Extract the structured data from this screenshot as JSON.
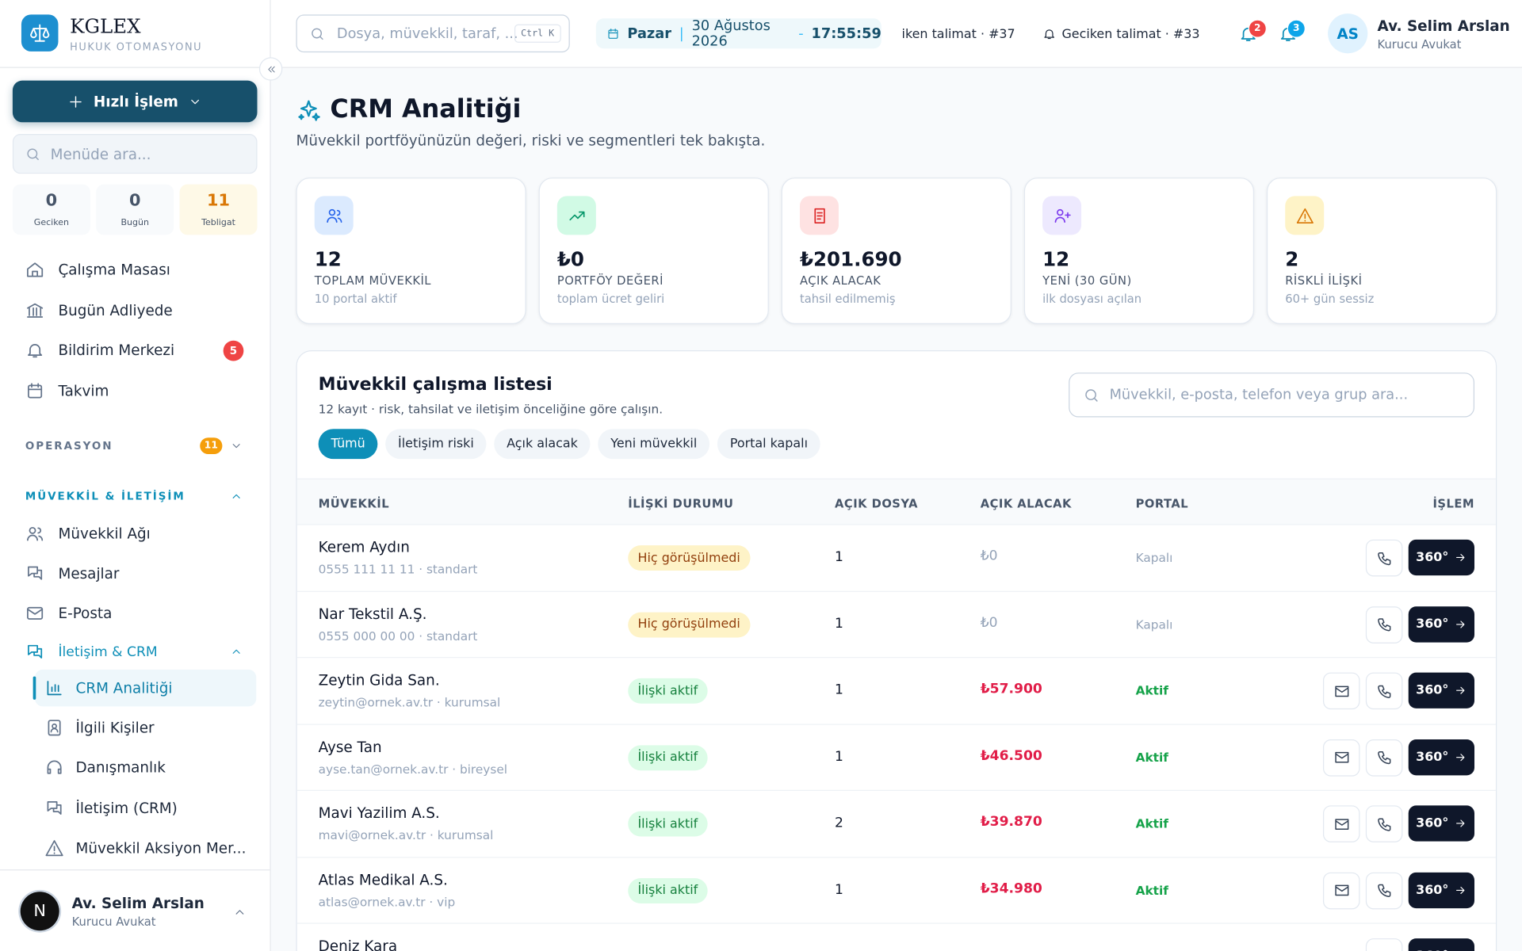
{
  "sidebar": {
    "brand": {
      "name": "KGLEX",
      "tagline": "HUKUK OTOMASYONU"
    },
    "quick_action": "Hızlı İşlem",
    "menu_search": "Menüde ara...",
    "counters": [
      {
        "value": "0",
        "label": "Geciken"
      },
      {
        "value": "0",
        "label": "Bugün"
      },
      {
        "value": "11",
        "label": "Tebligat"
      }
    ],
    "nav": [
      {
        "label": "Çalışma Masası"
      },
      {
        "label": "Bugün Adliyede"
      },
      {
        "label": "Bildirim Merkezi",
        "badge": "5"
      },
      {
        "label": "Takvim"
      }
    ],
    "operasyon": {
      "title": "OPERASYON",
      "badge": "11"
    },
    "client_section": {
      "title": "MÜVEKKİL & İLETİŞİM",
      "items": [
        "Müvekkil Ağı",
        "Mesajlar",
        "E-Posta"
      ],
      "group": {
        "label": "İletişim & CRM",
        "items": [
          "CRM Analitiği",
          "İlgili Kişiler",
          "Danışmanlık",
          "İletişim (CRM)",
          "Müvekkil Aksiyon Mer..."
        ]
      }
    },
    "user": {
      "initial": "N",
      "name": "Av. Selim Arslan",
      "role": "Kurucu Avukat"
    }
  },
  "topbar": {
    "search": "Dosya, müvekkil, taraf, ...",
    "shortcut": "Ctrl K",
    "day": "Pazar",
    "date": "30 Ağustos 2026",
    "time": "17:55:59",
    "ticker": [
      "iken talimat · #37",
      "Geciken talimat · #33"
    ],
    "alerts": [
      "2",
      "3"
    ],
    "user": {
      "initials": "AS",
      "name": "Av. Selim Arslan",
      "role": "Kurucu Avukat"
    }
  },
  "page": {
    "title": "CRM Analitiği",
    "subtitle": "Müvekkil portföyünüzün değeri, riski ve segmentleri tek bakışta.",
    "stats": [
      {
        "value": "12",
        "label": "TOPLAM MÜVEKKİL",
        "note": "10 portal aktif"
      },
      {
        "value": "₺0",
        "label": "PORTFÖY DEĞERİ",
        "note": "toplam ücret geliri"
      },
      {
        "value": "₺201.690",
        "label": "AÇIK ALACAK",
        "note": "tahsil edilmemiş"
      },
      {
        "value": "12",
        "label": "YENİ (30 GÜN)",
        "note": "ilk dosyası açılan"
      },
      {
        "value": "2",
        "label": "RİSKLİ İLİŞKİ",
        "note": "60+ gün sessiz"
      }
    ],
    "worklist": {
      "title": "Müvekkil çalışma listesi",
      "subtitle": "12 kayıt · risk, tahsilat ve iletişim önceliğine göre çalışın.",
      "search": "Müvekkil, e-posta, telefon veya grup ara...",
      "filters": [
        "Tümü",
        "İletişim riski",
        "Açık alacak",
        "Yeni müvekkil",
        "Portal kapalı"
      ],
      "columns": [
        "MÜVEKKİL",
        "İLİŞKİ DURUMU",
        "AÇIK DOSYA",
        "AÇIK ALACAK",
        "PORTAL",
        "İŞLEM"
      ],
      "action": "360°",
      "rows": [
        {
          "name": "Kerem Aydın",
          "meta": "0555 111 11 11 · standart",
          "status": "Hiç görüşülmedi",
          "files": "1",
          "receivable": "₺0",
          "portal": "Kapalı",
          "tone": "new"
        },
        {
          "name": "Nar Tekstil A.Ş.",
          "meta": "0555 000 00 00 · standart",
          "status": "Hiç görüşülmedi",
          "files": "1",
          "receivable": "₺0",
          "portal": "Kapalı",
          "tone": "new"
        },
        {
          "name": "Zeytin Gida San.",
          "meta": "zeytin@ornek.av.tr · kurumsal",
          "status": "İlişki aktif",
          "files": "1",
          "receivable": "₺57.900",
          "portal": "Aktif",
          "tone": "active"
        },
        {
          "name": "Ayse Tan",
          "meta": "ayse.tan@ornek.av.tr · bireysel",
          "status": "İlişki aktif",
          "files": "1",
          "receivable": "₺46.500",
          "portal": "Aktif",
          "tone": "active"
        },
        {
          "name": "Mavi Yazilim A.S.",
          "meta": "mavi@ornek.av.tr · kurumsal",
          "status": "İlişki aktif",
          "files": "2",
          "receivable": "₺39.870",
          "portal": "Aktif",
          "tone": "active"
        },
        {
          "name": "Atlas Medikal A.S.",
          "meta": "atlas@ornek.av.tr · vip",
          "status": "İlişki aktif",
          "files": "1",
          "receivable": "₺34.980",
          "portal": "Aktif",
          "tone": "active"
        },
        {
          "name": "Deniz Kara"
        }
      ]
    }
  }
}
